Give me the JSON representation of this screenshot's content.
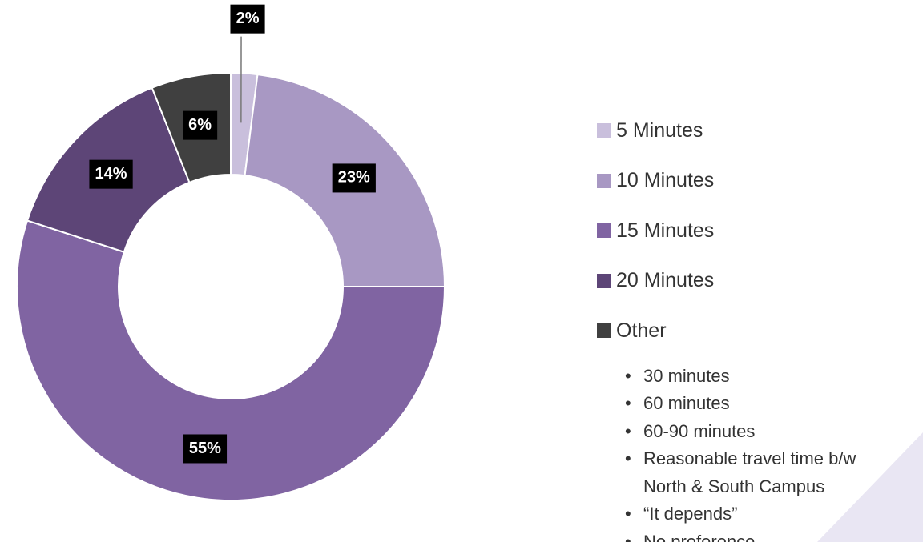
{
  "chart_data": {
    "type": "donut",
    "categories": [
      "5 Minutes",
      "10 Minutes",
      "15 Minutes",
      "20 Minutes",
      "Other"
    ],
    "values": [
      2,
      23,
      55,
      14,
      6
    ],
    "value_labels": [
      "2%",
      "23%",
      "55%",
      "14%",
      "6%"
    ],
    "colors": [
      "#c9bfdc",
      "#a898c3",
      "#8064a2",
      "#5d4577",
      "#404040"
    ],
    "annotations": [
      "30 minutes",
      "60 minutes",
      "60-90 minutes",
      "Reasonable travel time b/w North & South Campus",
      "“It depends”",
      "No preference"
    ]
  }
}
